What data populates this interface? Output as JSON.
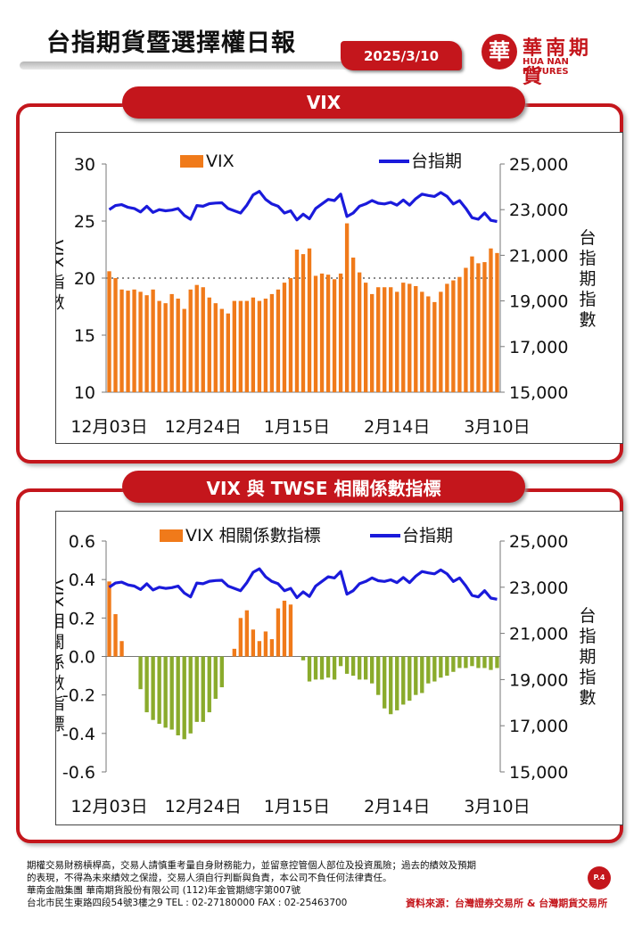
{
  "header": {
    "title": "台指期貨暨選擇權日報",
    "date": "2025/3/10",
    "logo_cn": "華南期貨",
    "logo_en": "HUA NAN FUTURES",
    "logo_icon_char": "華"
  },
  "panels": [
    {
      "banner": "VIX"
    },
    {
      "banner": "VIX 與 TWSE 相關係數指標"
    }
  ],
  "chart_data": [
    {
      "type": "bar",
      "title": "VIX",
      "categories_ticks": [
        "12月03日",
        "12月24日",
        "1月15日",
        "2月14日",
        "3月10日"
      ],
      "ylabel": "VIX 指數",
      "y2label": "台指期指數",
      "ylim": [
        10,
        30
      ],
      "yticks": [
        "10",
        "15",
        "20",
        "25",
        "30"
      ],
      "y2lim": [
        15000,
        25000
      ],
      "y2ticks": [
        "15,000",
        "17,000",
        "19,000",
        "21,000",
        "23,000",
        "25,000"
      ],
      "reference_line": 20,
      "series": [
        {
          "name": "VIX",
          "type": "bar",
          "color": "#f07a1a",
          "values": [
            20.6,
            20.0,
            19.0,
            18.9,
            19.0,
            18.8,
            18.5,
            19.0,
            18.0,
            17.8,
            18.6,
            18.2,
            17.3,
            19.0,
            19.4,
            19.2,
            18.3,
            17.8,
            17.3,
            16.9,
            18.0,
            18.0,
            18.0,
            18.3,
            18.0,
            18.2,
            18.6,
            19.0,
            19.6,
            20.0,
            22.5,
            22.1,
            22.6,
            20.2,
            20.4,
            20.3,
            19.9,
            20.4,
            24.8,
            21.8,
            20.5,
            19.6,
            18.6,
            19.2,
            19.2,
            19.2,
            18.8,
            19.6,
            19.5,
            19.3,
            18.8,
            18.4,
            17.9,
            18.8,
            19.5,
            19.8,
            20.1,
            20.9,
            21.9,
            21.3,
            21.4,
            22.6,
            22.2
          ]
        },
        {
          "name": "台指期",
          "type": "line",
          "color": "#1a1adb",
          "values": [
            23000,
            23180,
            23220,
            23100,
            23050,
            22900,
            23150,
            22880,
            23000,
            22950,
            22980,
            23050,
            22750,
            22580,
            23180,
            23150,
            23260,
            23290,
            23300,
            23050,
            22950,
            22850,
            23200,
            23650,
            23800,
            23450,
            23250,
            23150,
            22850,
            22950,
            22550,
            22800,
            22600,
            23050,
            23250,
            23450,
            23400,
            23680,
            22700,
            22850,
            23150,
            23250,
            23400,
            23280,
            23250,
            23320,
            23200,
            23420,
            23200,
            23480,
            23680,
            23620,
            23580,
            23750,
            23580,
            23250,
            23400,
            23060,
            22650,
            22580,
            22850,
            22530,
            22480
          ]
        }
      ]
    },
    {
      "type": "bar",
      "title": "VIX 與 TWSE 相關係數指標",
      "categories_ticks": [
        "12月03日",
        "12月24日",
        "1月15日",
        "2月14日",
        "3月10日"
      ],
      "ylabel": "VIX 相關係數指標",
      "y2label": "台指期指數",
      "ylim": [
        -0.6,
        0.6
      ],
      "yticks": [
        "-0.6",
        "-0.4",
        "-0.2",
        "0.0",
        "0.2",
        "0.4",
        "0.6"
      ],
      "y2lim": [
        15000,
        25000
      ],
      "y2ticks": [
        "15,000",
        "17,000",
        "19,000",
        "21,000",
        "23,000",
        "25,000"
      ],
      "series": [
        {
          "name": "VIX 相關係數指標",
          "type": "bar",
          "color": "#f07a1a",
          "neg_color": "#8aab2c",
          "values": [
            0.39,
            0.22,
            0.08,
            0.0,
            0.0,
            -0.17,
            -0.29,
            -0.33,
            -0.35,
            -0.37,
            -0.38,
            -0.41,
            -0.43,
            -0.4,
            -0.34,
            -0.34,
            -0.29,
            -0.22,
            -0.16,
            0.0,
            0.04,
            0.2,
            0.24,
            0.14,
            0.08,
            0.13,
            0.09,
            0.25,
            0.29,
            0.27,
            0.0,
            -0.02,
            -0.13,
            -0.12,
            -0.12,
            -0.11,
            -0.12,
            -0.05,
            -0.09,
            -0.1,
            -0.12,
            -0.12,
            -0.14,
            -0.2,
            -0.27,
            -0.3,
            -0.28,
            -0.25,
            -0.23,
            -0.2,
            -0.19,
            -0.14,
            -0.13,
            -0.11,
            -0.1,
            -0.08,
            -0.06,
            -0.06,
            -0.05,
            -0.06,
            -0.06,
            -0.07,
            -0.06
          ]
        },
        {
          "name": "台指期",
          "type": "line",
          "color": "#1a1adb",
          "values": [
            23000,
            23180,
            23220,
            23100,
            23050,
            22900,
            23150,
            22880,
            23000,
            22950,
            22980,
            23050,
            22750,
            22580,
            23180,
            23150,
            23260,
            23290,
            23300,
            23050,
            22950,
            22850,
            23200,
            23650,
            23800,
            23450,
            23250,
            23150,
            22850,
            22950,
            22550,
            22800,
            22600,
            23050,
            23250,
            23450,
            23400,
            23680,
            22700,
            22850,
            23150,
            23250,
            23400,
            23280,
            23250,
            23320,
            23200,
            23420,
            23200,
            23480,
            23680,
            23620,
            23580,
            23750,
            23580,
            23250,
            23400,
            23060,
            22650,
            22580,
            22850,
            22530,
            22480
          ]
        }
      ]
    }
  ],
  "footer": {
    "disclaimer_1": "期權交易財務槓桿高，交易人請慎重考量自身財務能力，並留意控管個人部位及投資風險；過去的績效及預期",
    "disclaimer_2": "的表現，不得為未來績效之保證，交易人須自行判斷與負責，本公司不負任何法律責任。",
    "company": "華南金融集團 華南期貨股份有限公司 (112)年金管期總字第007號",
    "address": "台北市民生東路四段54號3樓之9  TEL : 02-27180000   FAX : 02-25463700",
    "source": "資料來源：台灣證券交易所 & 台灣期貨交易所",
    "page": "P.4"
  },
  "colors": {
    "brand": "#c4161c",
    "bar": "#f07a1a",
    "bar_negative": "#8aab2c",
    "line": "#1a1adb"
  }
}
